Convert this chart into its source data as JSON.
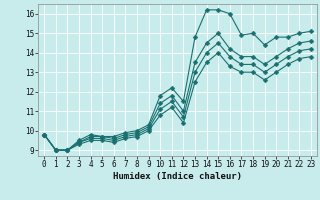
{
  "xlabel": "Humidex (Indice chaleur)",
  "background_color": "#c8ecec",
  "grid_color": "#ffffff",
  "line_color": "#1a7070",
  "xlim": [
    -0.5,
    23.5
  ],
  "ylim": [
    8.7,
    16.5
  ],
  "xticks": [
    0,
    1,
    2,
    3,
    4,
    5,
    6,
    7,
    8,
    9,
    10,
    11,
    12,
    13,
    14,
    15,
    16,
    17,
    18,
    19,
    20,
    21,
    22,
    23
  ],
  "yticks": [
    9,
    10,
    11,
    12,
    13,
    14,
    15,
    16
  ],
  "x": [
    0,
    1,
    2,
    3,
    4,
    5,
    6,
    7,
    8,
    9,
    10,
    11,
    12,
    13,
    14,
    15,
    16,
    17,
    18,
    19,
    20,
    21,
    22,
    23
  ],
  "lines": [
    [
      9.8,
      9.0,
      9.0,
      9.5,
      9.8,
      9.7,
      9.7,
      9.9,
      10.0,
      10.3,
      11.8,
      12.2,
      11.5,
      14.8,
      16.2,
      16.2,
      16.0,
      14.9,
      15.0,
      14.4,
      14.8,
      14.8,
      15.0,
      15.1
    ],
    [
      9.8,
      9.0,
      9.0,
      9.4,
      9.7,
      9.7,
      9.6,
      9.8,
      9.9,
      10.2,
      11.4,
      11.8,
      11.0,
      13.5,
      14.5,
      15.0,
      14.2,
      13.8,
      13.8,
      13.4,
      13.8,
      14.2,
      14.5,
      14.6
    ],
    [
      9.8,
      9.0,
      9.0,
      9.4,
      9.6,
      9.6,
      9.5,
      9.7,
      9.8,
      10.1,
      11.1,
      11.5,
      10.7,
      13.0,
      14.0,
      14.5,
      13.8,
      13.4,
      13.4,
      13.0,
      13.4,
      13.8,
      14.1,
      14.2
    ],
    [
      9.8,
      9.0,
      9.0,
      9.3,
      9.5,
      9.5,
      9.4,
      9.6,
      9.7,
      10.0,
      10.8,
      11.2,
      10.4,
      12.5,
      13.5,
      14.0,
      13.3,
      13.0,
      13.0,
      12.6,
      13.0,
      13.4,
      13.7,
      13.8
    ]
  ],
  "linewidth": 0.8,
  "markersize": 2.5
}
